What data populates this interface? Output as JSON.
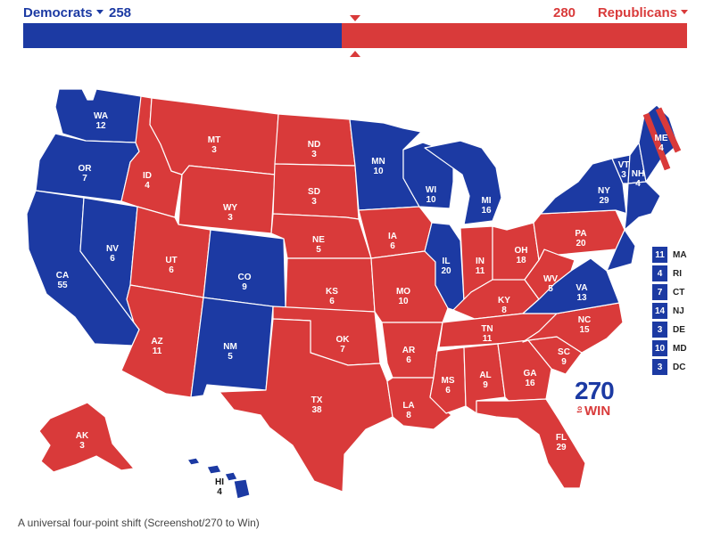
{
  "header": {
    "dem_label": "Democrats",
    "dem_votes": "258",
    "rep_votes": "280",
    "rep_label": "Republicans",
    "dem_share": 0.48
  },
  "colors": {
    "dem": "#1c3aa3",
    "rep": "#d93a3a"
  },
  "states": [
    {
      "abbr": "WA",
      "votes": "12",
      "party": "dem"
    },
    {
      "abbr": "OR",
      "votes": "7",
      "party": "dem"
    },
    {
      "abbr": "CA",
      "votes": "55",
      "party": "dem"
    },
    {
      "abbr": "NV",
      "votes": "6",
      "party": "dem"
    },
    {
      "abbr": "ID",
      "votes": "4",
      "party": "rep"
    },
    {
      "abbr": "MT",
      "votes": "3",
      "party": "rep"
    },
    {
      "abbr": "WY",
      "votes": "3",
      "party": "rep"
    },
    {
      "abbr": "UT",
      "votes": "6",
      "party": "rep"
    },
    {
      "abbr": "AZ",
      "votes": "11",
      "party": "rep"
    },
    {
      "abbr": "CO",
      "votes": "9",
      "party": "dem"
    },
    {
      "abbr": "NM",
      "votes": "5",
      "party": "dem"
    },
    {
      "abbr": "ND",
      "votes": "3",
      "party": "rep"
    },
    {
      "abbr": "SD",
      "votes": "3",
      "party": "rep"
    },
    {
      "abbr": "NE",
      "votes": "5",
      "party": "rep"
    },
    {
      "abbr": "KS",
      "votes": "6",
      "party": "rep"
    },
    {
      "abbr": "OK",
      "votes": "7",
      "party": "rep"
    },
    {
      "abbr": "TX",
      "votes": "38",
      "party": "rep"
    },
    {
      "abbr": "MN",
      "votes": "10",
      "party": "dem"
    },
    {
      "abbr": "IA",
      "votes": "6",
      "party": "rep"
    },
    {
      "abbr": "MO",
      "votes": "10",
      "party": "rep"
    },
    {
      "abbr": "AR",
      "votes": "6",
      "party": "rep"
    },
    {
      "abbr": "LA",
      "votes": "8",
      "party": "rep"
    },
    {
      "abbr": "WI",
      "votes": "10",
      "party": "dem"
    },
    {
      "abbr": "IL",
      "votes": "20",
      "party": "dem"
    },
    {
      "abbr": "MI",
      "votes": "16",
      "party": "dem"
    },
    {
      "abbr": "IN",
      "votes": "11",
      "party": "rep"
    },
    {
      "abbr": "OH",
      "votes": "18",
      "party": "rep"
    },
    {
      "abbr": "KY",
      "votes": "8",
      "party": "rep"
    },
    {
      "abbr": "TN",
      "votes": "11",
      "party": "rep"
    },
    {
      "abbr": "MS",
      "votes": "6",
      "party": "rep"
    },
    {
      "abbr": "AL",
      "votes": "9",
      "party": "rep"
    },
    {
      "abbr": "GA",
      "votes": "16",
      "party": "rep"
    },
    {
      "abbr": "FL",
      "votes": "29",
      "party": "rep"
    },
    {
      "abbr": "SC",
      "votes": "9",
      "party": "rep"
    },
    {
      "abbr": "NC",
      "votes": "15",
      "party": "rep"
    },
    {
      "abbr": "VA",
      "votes": "13",
      "party": "dem"
    },
    {
      "abbr": "WV",
      "votes": "5",
      "party": "rep"
    },
    {
      "abbr": "PA",
      "votes": "20",
      "party": "rep"
    },
    {
      "abbr": "NY",
      "votes": "29",
      "party": "dem"
    },
    {
      "abbr": "VT",
      "votes": "3",
      "party": "dem"
    },
    {
      "abbr": "NH",
      "votes": "4",
      "party": "dem"
    },
    {
      "abbr": "ME",
      "votes": "4",
      "party": "split"
    },
    {
      "abbr": "AK",
      "votes": "3",
      "party": "rep"
    },
    {
      "abbr": "HI",
      "votes": "4",
      "party": "dem"
    }
  ],
  "small_states": [
    {
      "votes": "11",
      "abbr": "MA"
    },
    {
      "votes": "4",
      "abbr": "RI"
    },
    {
      "votes": "7",
      "abbr": "CT"
    },
    {
      "votes": "14",
      "abbr": "NJ"
    },
    {
      "votes": "3",
      "abbr": "DE"
    },
    {
      "votes": "10",
      "abbr": "MD"
    },
    {
      "votes": "3",
      "abbr": "DC"
    }
  ],
  "logo": {
    "number": "270",
    "to": "to",
    "win": "WIN"
  },
  "caption": "A universal four-point shift (Screenshot/270 to Win)"
}
